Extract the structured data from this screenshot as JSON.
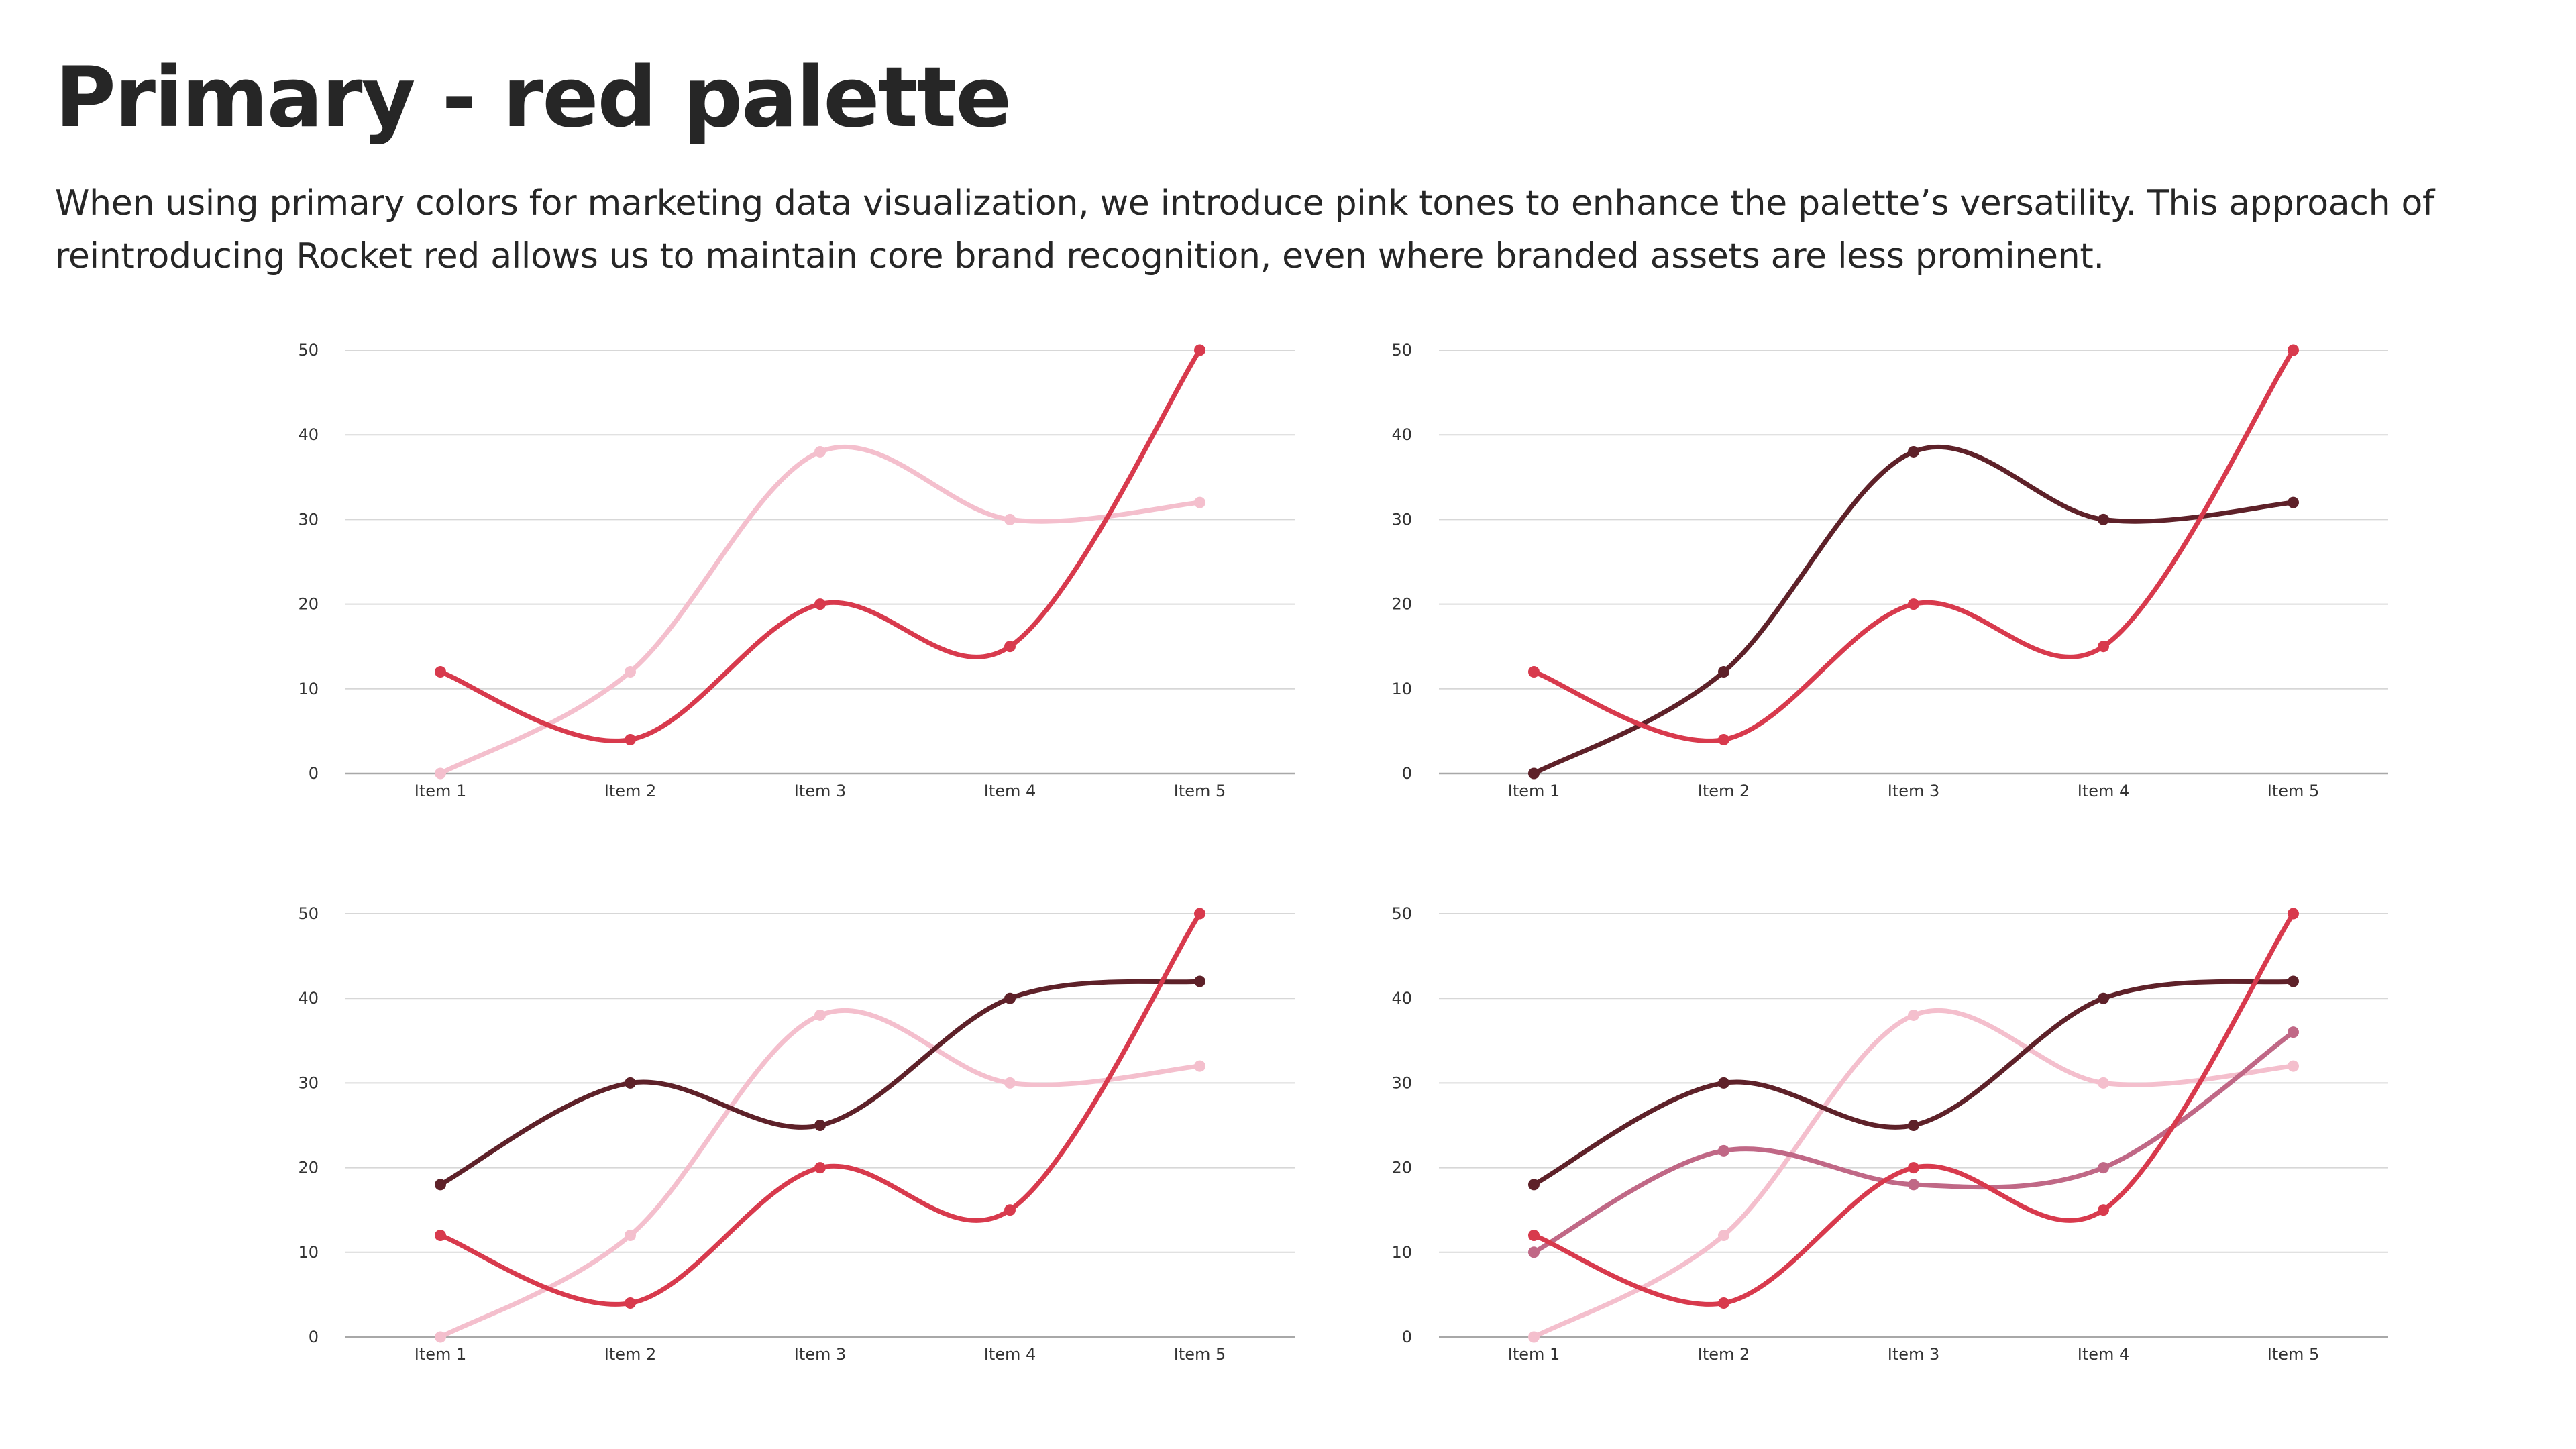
{
  "page": {
    "title": "Primary - red palette",
    "description": "When using primary colors for marketing data visualization, we introduce pink tones to enhance the palette’s versatility. This approach of reintroducing Rocket red allows us to maintain core brand recognition, even where branded assets are less prominent."
  },
  "colors": {
    "rocket_red": "#d83a4d",
    "pink": "#f4bfcd",
    "dark": "#5e2129",
    "mauve": "#c06886",
    "grid": "#d7d7d7",
    "axis": "#a8a8a8"
  },
  "chart_data": [
    {
      "type": "line",
      "categories": [
        "Item 1",
        "Item 2",
        "Item 3",
        "Item 4",
        "Item 5"
      ],
      "ylim": [
        0,
        50
      ],
      "yticks": [
        0,
        10,
        20,
        30,
        40,
        50
      ],
      "grid": true,
      "smooth": true,
      "series": [
        {
          "color": "#f4bfcd",
          "values": [
            0,
            12,
            38,
            30,
            32
          ]
        },
        {
          "color": "#d83a4d",
          "values": [
            12,
            4,
            20,
            15,
            50
          ]
        }
      ]
    },
    {
      "type": "line",
      "categories": [
        "Item 1",
        "Item 2",
        "Item 3",
        "Item 4",
        "Item 5"
      ],
      "ylim": [
        0,
        50
      ],
      "yticks": [
        0,
        10,
        20,
        30,
        40,
        50
      ],
      "grid": true,
      "smooth": true,
      "series": [
        {
          "color": "#5e2129",
          "values": [
            0,
            12,
            38,
            30,
            32
          ]
        },
        {
          "color": "#d83a4d",
          "values": [
            12,
            4,
            20,
            15,
            50
          ]
        }
      ]
    },
    {
      "type": "line",
      "categories": [
        "Item 1",
        "Item 2",
        "Item 3",
        "Item 4",
        "Item 5"
      ],
      "ylim": [
        0,
        50
      ],
      "yticks": [
        0,
        10,
        20,
        30,
        40,
        50
      ],
      "grid": true,
      "smooth": true,
      "series": [
        {
          "color": "#f4bfcd",
          "values": [
            0,
            12,
            38,
            30,
            32
          ]
        },
        {
          "color": "#5e2129",
          "values": [
            18,
            30,
            25,
            40,
            42
          ]
        },
        {
          "color": "#d83a4d",
          "values": [
            12,
            4,
            20,
            15,
            50
          ]
        }
      ]
    },
    {
      "type": "line",
      "categories": [
        "Item 1",
        "Item 2",
        "Item 3",
        "Item 4",
        "Item 5"
      ],
      "ylim": [
        0,
        50
      ],
      "yticks": [
        0,
        10,
        20,
        30,
        40,
        50
      ],
      "grid": true,
      "smooth": true,
      "series": [
        {
          "color": "#f4bfcd",
          "values": [
            0,
            12,
            38,
            30,
            32
          ]
        },
        {
          "color": "#c06886",
          "values": [
            10,
            22,
            18,
            20,
            36
          ]
        },
        {
          "color": "#5e2129",
          "values": [
            18,
            30,
            25,
            40,
            42
          ]
        },
        {
          "color": "#d83a4d",
          "values": [
            12,
            4,
            20,
            15,
            50
          ]
        }
      ]
    }
  ]
}
